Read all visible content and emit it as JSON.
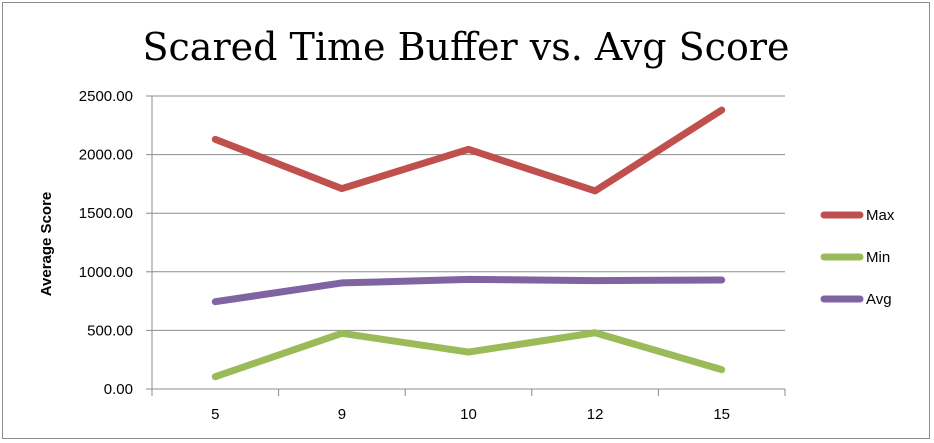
{
  "chart_data": {
    "type": "line",
    "title": "Scared Time Buffer vs. Avg Score",
    "xlabel": "",
    "ylabel": "Average Score",
    "categories": [
      "5",
      "9",
      "10",
      "12",
      "15"
    ],
    "ylim": [
      0,
      2500
    ],
    "yticks": [
      "0.00",
      "500.00",
      "1000.00",
      "1500.00",
      "2000.00",
      "2500.00"
    ],
    "grid": true,
    "legend_position": "right",
    "series": [
      {
        "name": "Max",
        "color": "#C0504D",
        "values": [
          2130,
          1710,
          2045,
          1690,
          2380
        ]
      },
      {
        "name": "Min",
        "color": "#9BBB59",
        "values": [
          105,
          475,
          315,
          480,
          165
        ]
      },
      {
        "name": "Avg",
        "color": "#8064A2",
        "values": [
          745,
          905,
          935,
          925,
          930
        ]
      }
    ]
  }
}
